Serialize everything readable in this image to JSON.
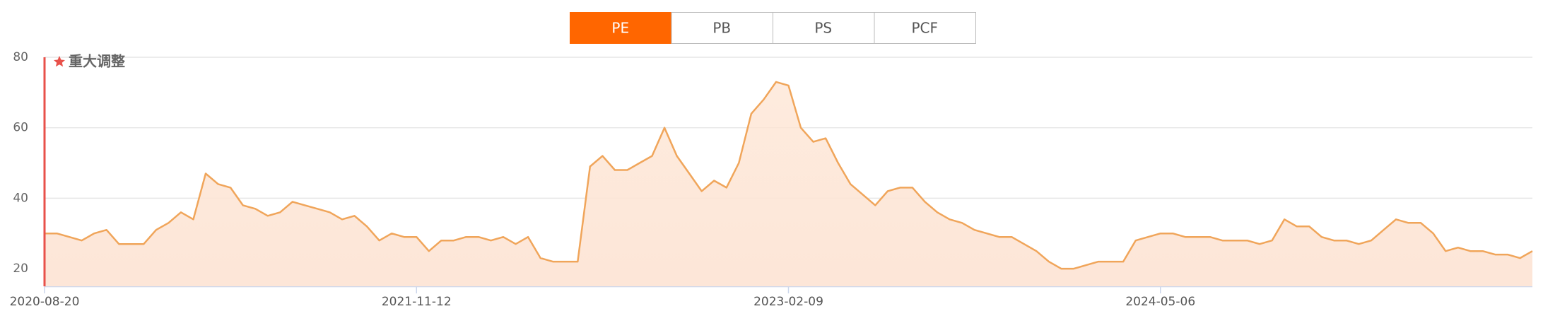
{
  "tabs": [
    "PE",
    "PB",
    "PS",
    "PCF"
  ],
  "active_tab": 0,
  "chart_data": {
    "type": "area",
    "annotation": "重大调整",
    "categories": [
      "2020-08-20",
      null,
      null,
      null,
      null,
      null,
      null,
      null,
      null,
      null,
      null,
      null,
      null,
      null,
      null,
      null,
      null,
      null,
      null,
      null,
      null,
      null,
      null,
      null,
      null,
      null,
      null,
      null,
      null,
      null,
      "2021-11-12",
      null,
      null,
      null,
      null,
      null,
      null,
      null,
      null,
      null,
      null,
      null,
      null,
      null,
      null,
      null,
      null,
      null,
      null,
      null,
      null,
      null,
      null,
      null,
      null,
      null,
      null,
      null,
      null,
      null,
      "2023-02-09",
      null,
      null,
      null,
      null,
      null,
      null,
      null,
      null,
      null,
      null,
      null,
      null,
      null,
      null,
      null,
      null,
      null,
      null,
      null,
      null,
      null,
      null,
      null,
      null,
      null,
      null,
      null,
      null,
      null,
      "2024-05-06",
      null,
      null,
      null,
      null,
      null,
      null,
      null,
      null,
      null,
      null,
      null,
      null,
      null,
      null,
      null,
      null,
      null,
      null,
      null,
      null,
      null,
      null,
      null,
      null,
      null,
      null,
      null,
      null,
      null,
      null
    ],
    "series": [
      {
        "name": "PE",
        "color": "#f0a55a",
        "values": [
          30,
          30,
          29,
          28,
          30,
          31,
          27,
          27,
          27,
          31,
          33,
          36,
          34,
          47,
          44,
          43,
          38,
          37,
          35,
          36,
          39,
          38,
          37,
          36,
          34,
          35,
          32,
          28,
          30,
          29,
          29,
          25,
          28,
          28,
          29,
          29,
          28,
          29,
          27,
          29,
          23,
          22,
          22,
          22,
          49,
          52,
          48,
          48,
          50,
          52,
          60,
          52,
          47,
          42,
          45,
          43,
          50,
          64,
          68,
          73,
          72,
          60,
          56,
          57,
          50,
          44,
          41,
          38,
          42,
          43,
          43,
          39,
          36,
          34,
          33,
          31,
          30,
          29,
          29,
          27,
          25,
          22,
          20,
          20,
          21,
          22,
          22,
          22,
          28,
          29,
          30,
          30,
          29,
          29,
          29,
          28,
          28,
          28,
          27,
          28,
          34,
          32,
          32,
          29,
          28,
          28,
          27,
          28,
          31,
          34,
          33,
          33,
          30,
          25,
          26,
          25,
          25,
          24,
          24,
          23,
          25
        ]
      }
    ],
    "ylim": [
      15,
      80
    ],
    "yticks": [
      20,
      40,
      60,
      80
    ],
    "grid": true,
    "marker_color": "#e8514a"
  }
}
